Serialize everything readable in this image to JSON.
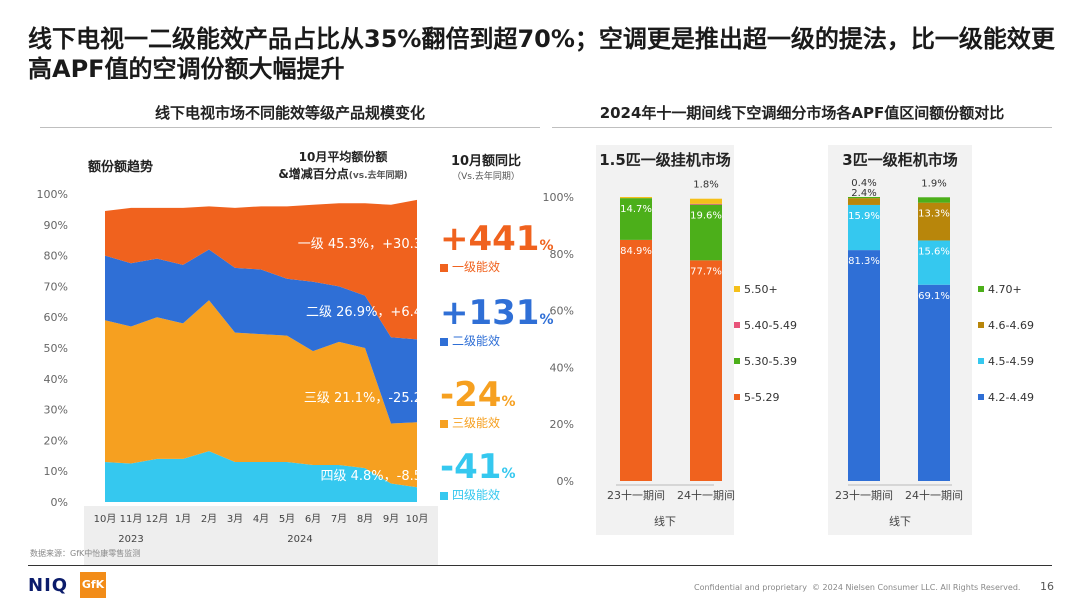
{
  "title": "线下电视一二级能效产品占比从35%翻倍到超70%；空调更是推出超一级的提法，比一级能效更高APF值的空调份额大幅提升",
  "left_panel": {
    "heading": "线下电视市场不同能效等级产品规模变化",
    "trend_label": "额份额趋势",
    "avg_heading_line1": "10月平均额份额",
    "avg_heading_line2": "&增减百分点",
    "avg_heading_note": "(vs.去年同期)",
    "yoy_heading": "10月额同比",
    "yoy_note": "（Vs.去年同期）",
    "rows": [
      {
        "label": "一级  45.3%，+30.3",
        "yoy_num": "+441",
        "yoy_pct": "%",
        "legend": "一级能效",
        "color": "#f0621e"
      },
      {
        "label": "二级 26.9%，+6.4",
        "yoy_num": "+131",
        "yoy_pct": "%",
        "legend": "二级能效",
        "color": "#2f6fd6"
      },
      {
        "label": "三级 21.1%，-25.2",
        "yoy_num": "-24",
        "yoy_pct": "%",
        "legend": "三级能效",
        "color": "#f6a020"
      },
      {
        "label": "四级  4.8%，-8.5",
        "yoy_num": "-41",
        "yoy_pct": "%",
        "legend": "四级能效",
        "color": "#35c8ef"
      }
    ],
    "source": "数据来源：GfK中怡康零售监测"
  },
  "right_panel": {
    "heading": "2024年十一期间线下空调细分市场各APF值区间额份额对比",
    "chart1_title": "1.5匹一级挂机市场",
    "chart2_title": "3匹一级柜机市场",
    "group_label": "线下"
  },
  "footer": {
    "confidential": "Confidential and proprietary",
    "copyright": "© 2024 Nielsen Consumer LLC. All Rights Reserved.",
    "page": "16",
    "logo_niq": "NIQ",
    "logo_gfk": "GfK"
  },
  "chart_data": [
    {
      "type": "area",
      "title": "额份额趋势",
      "categories": [
        "10月",
        "11月",
        "12月",
        "1月",
        "2月",
        "3月",
        "4月",
        "5月",
        "6月",
        "7月",
        "8月",
        "9月",
        "10月"
      ],
      "year_labels": [
        {
          "label": "2023",
          "span": [
            0,
            2
          ]
        },
        {
          "label": "2024",
          "span": [
            3,
            12
          ]
        }
      ],
      "ylim": [
        0,
        100
      ],
      "yticks": [
        "0%",
        "10%",
        "20%",
        "30%",
        "40%",
        "50%",
        "60%",
        "70%",
        "80%",
        "90%",
        "100%"
      ],
      "stacked": true,
      "series": [
        {
          "name": "四级能效",
          "color": "#35c8ef",
          "values": [
            13,
            12.5,
            14,
            14,
            16.5,
            13,
            13,
            13,
            12,
            12,
            11,
            6,
            4.8
          ]
        },
        {
          "name": "三级能效",
          "color": "#f6a020",
          "values": [
            46,
            44.5,
            46,
            44,
            49,
            42,
            41.5,
            41,
            37,
            40,
            39,
            19.5,
            21.1
          ]
        },
        {
          "name": "二级能效",
          "color": "#2f6fd6",
          "values": [
            21,
            20.5,
            19,
            19,
            16.5,
            21,
            21,
            18.5,
            22.5,
            18,
            17,
            28,
            26.9
          ]
        },
        {
          "name": "一级能效",
          "color": "#f0621e",
          "values": [
            14.5,
            18,
            16.5,
            18.5,
            14,
            19.5,
            20.5,
            23.5,
            25,
            27,
            30,
            43,
            45.3
          ]
        }
      ]
    },
    {
      "type": "bar",
      "stacked": true,
      "title": "1.5匹一级挂机市场",
      "categories": [
        "23十一期间",
        "24十一期间"
      ],
      "ylim": [
        0,
        100
      ],
      "yticks": [
        "0%",
        "20%",
        "40%",
        "60%",
        "80%",
        "100%"
      ],
      "series": [
        {
          "name": "5-5.29",
          "color": "#f0621e",
          "values": [
            84.9,
            77.7
          ],
          "labels": [
            "84.9%",
            "77.7%"
          ]
        },
        {
          "name": "5.30-5.39",
          "color": "#4caf1a",
          "values": [
            14.7,
            19.6
          ],
          "labels": [
            "14.7%",
            "19.6%"
          ]
        },
        {
          "name": "5.40-5.49",
          "color": "#e8547a",
          "values": [
            0.0,
            0.3
          ],
          "labels": [
            "",
            ""
          ]
        },
        {
          "name": "5.50+",
          "color": "#f5c01a",
          "values": [
            0.4,
            1.8
          ],
          "labels": [
            "",
            "1.8%"
          ]
        }
      ]
    },
    {
      "type": "bar",
      "stacked": true,
      "title": "3匹一级柜机市场",
      "categories": [
        "23十一期间",
        "24十一期间"
      ],
      "ylim": [
        0,
        100
      ],
      "series": [
        {
          "name": "4.2-4.49",
          "color": "#2f6fd6",
          "values": [
            81.3,
            69.1
          ],
          "labels": [
            "81.3%",
            "69.1%"
          ]
        },
        {
          "name": "4.5-4.59",
          "color": "#35c8ef",
          "values": [
            15.9,
            15.6
          ],
          "labels": [
            "15.9%",
            "15.6%"
          ]
        },
        {
          "name": "4.6-4.69",
          "color": "#b8860b",
          "values": [
            2.4,
            13.3
          ],
          "labels": [
            "2.4%",
            "13.3%"
          ]
        },
        {
          "name": "4.70+",
          "color": "#4caf1a",
          "values": [
            0.4,
            1.9
          ],
          "labels": [
            "0.4%",
            "1.9%"
          ]
        }
      ]
    }
  ]
}
